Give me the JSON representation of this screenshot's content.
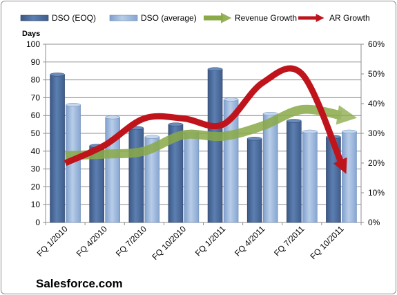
{
  "chart_data": {
    "type": "bar",
    "title": "",
    "categories": [
      "FQ 1/2010",
      "FQ 4/2010",
      "FQ 7/2010",
      "FQ 10/2010",
      "FQ 1/2011",
      "FQ 4/2011",
      "FQ 7/2011",
      "FQ 10/2011"
    ],
    "y_left": {
      "label": "Days",
      "min": 0,
      "max": 100,
      "step": 10
    },
    "y_right": {
      "label": "",
      "min": 0,
      "max": 60,
      "step": 10,
      "unit": "%"
    },
    "grid": true,
    "legend_position": "top",
    "series": [
      {
        "name": "DSO (EOQ)",
        "kind": "bar",
        "axis": "left",
        "color": "#4f6f9e",
        "values": [
          83,
          43,
          53,
          55,
          86,
          47,
          57,
          48
        ]
      },
      {
        "name": "DSO (average)",
        "kind": "bar",
        "axis": "left",
        "color": "#95b3d7",
        "values": [
          66,
          59,
          48,
          51,
          69,
          61,
          51,
          51
        ]
      },
      {
        "name": "Revenue Growth",
        "kind": "arrow-line",
        "axis": "right",
        "color": "#77933c",
        "values": [
          22.5,
          23,
          24,
          29.5,
          29,
          32.5,
          38,
          36
        ]
      },
      {
        "name": "AR Growth",
        "kind": "arrow-line",
        "axis": "right",
        "color": "#c0141c",
        "values": [
          20,
          26,
          35,
          35,
          33,
          47,
          50,
          20
        ]
      }
    ],
    "source_label": "Salesforce.com"
  }
}
